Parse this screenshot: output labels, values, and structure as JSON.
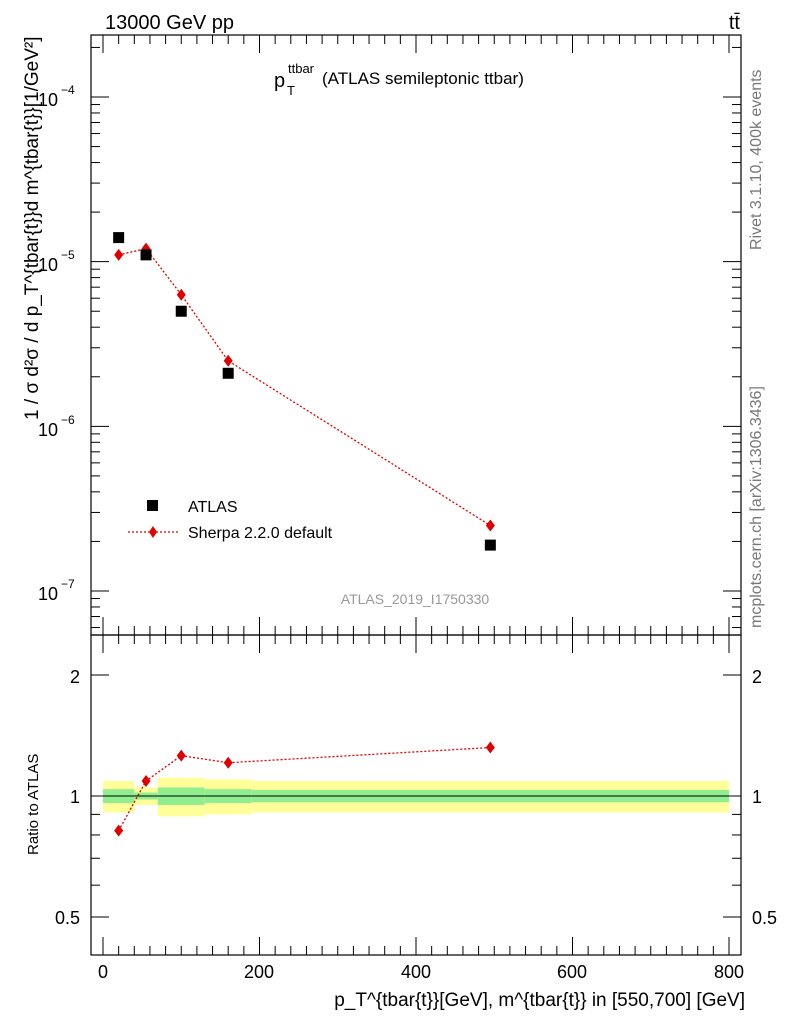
{
  "header": {
    "energy_label": "13000 GeV pp",
    "process_label": "tt̄",
    "title_main": "p",
    "title_sub": "T",
    "title_sup": "ttbar",
    "title_rest": " (ATLAS semileptonic ttbar)",
    "analysis_id": "ATLAS_2019_I1750330"
  },
  "side_labels": {
    "rivet": "Rivet 3.1.10,  400k events",
    "mcplots": "mcplots.cern.ch [arXiv:1306.3436]"
  },
  "axes": {
    "y_main": "1 / σ d²σ /  d p_T^{tbar{t}}d m^{tbar{t}}[1/GeV²]",
    "y_ratio": "Ratio to ATLAS",
    "x_label": "p_T^{tbar{t}}[GeV], m^{tbar{t}} in [550,700] [GeV]"
  },
  "legend": {
    "atlas": "ATLAS",
    "sherpa": "Sherpa 2.2.0 default"
  },
  "colors": {
    "data": "#000000",
    "mc": "#e00000",
    "band_inner": "#90ee90",
    "band_outer": "#ffff99"
  },
  "chart_data": [
    {
      "type": "scatter",
      "scale": "log",
      "xlim": [
        -25,
        815
      ],
      "ylim": [
        5e-08,
        0.00025
      ],
      "x_ticks": [
        0,
        200,
        400,
        600,
        800
      ],
      "y_ticks": [
        "10^-7",
        "10^-6",
        "10^-5",
        "10^-4"
      ],
      "series": [
        {
          "name": "ATLAS",
          "x": [
            20,
            55,
            100,
            160,
            495
          ],
          "y": [
            1.4e-05,
            1.1e-05,
            5e-06,
            2.1e-06,
            1.9e-07
          ]
        },
        {
          "name": "Sherpa 2.2.0 default",
          "x": [
            20,
            55,
            100,
            160,
            495
          ],
          "y": [
            1.1e-05,
            1.2e-05,
            6.3e-06,
            2.5e-06,
            2.5e-07
          ]
        }
      ]
    },
    {
      "type": "line",
      "ylabel": "Ratio to ATLAS",
      "ylim": [
        0.4,
        2.3
      ],
      "y_ticks": [
        0.5,
        1,
        2
      ],
      "series": [
        {
          "name": "Sherpa 2.2.0 default",
          "x": [
            20,
            55,
            100,
            160,
            495
          ],
          "y": [
            0.82,
            1.09,
            1.26,
            1.21,
            1.32
          ]
        }
      ],
      "uncertainty_bands": [
        {
          "x0": 0,
          "x1": 40,
          "inner": [
            0.96,
            1.04
          ],
          "outer": [
            0.91,
            1.09
          ]
        },
        {
          "x0": 40,
          "x1": 70,
          "inner": [
            0.98,
            1.02
          ],
          "outer": [
            0.95,
            1.05
          ]
        },
        {
          "x0": 70,
          "x1": 130,
          "inner": [
            0.95,
            1.05
          ],
          "outer": [
            0.89,
            1.11
          ]
        },
        {
          "x0": 130,
          "x1": 190,
          "inner": [
            0.96,
            1.04
          ],
          "outer": [
            0.9,
            1.1
          ]
        },
        {
          "x0": 190,
          "x1": 800,
          "inner": [
            0.965,
            1.035
          ],
          "outer": [
            0.91,
            1.09
          ]
        }
      ]
    }
  ]
}
